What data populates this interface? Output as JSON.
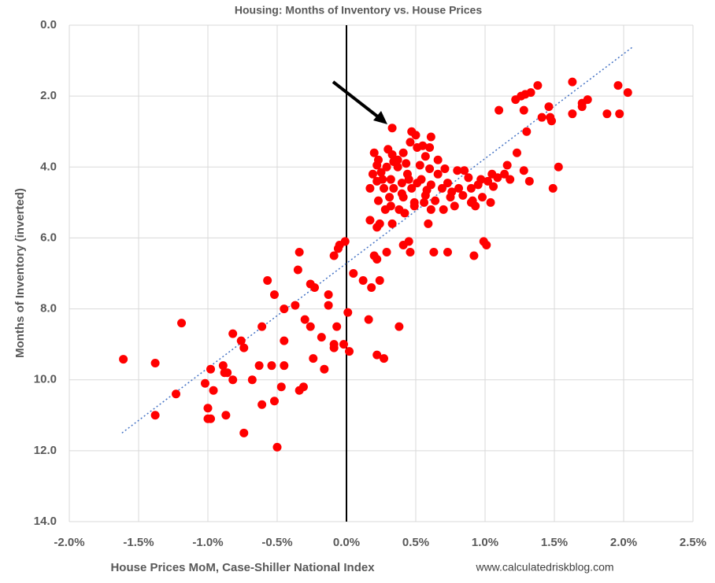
{
  "chart_data": {
    "type": "scatter",
    "title": "Housing: Months of Inventory vs. House Prices",
    "x_label": "House Prices MoM, Case-Shiller National Index",
    "y_label": "Months of Inventory (inverted)",
    "source": "www.calculatedriskblog.com",
    "color": "#ff0000",
    "y_inverted": true,
    "grid": true,
    "xlim": [
      -2.0,
      2.5
    ],
    "ylim": [
      0,
      14
    ],
    "xticks": [
      {
        "value": -2.0,
        "label": "-2.0%"
      },
      {
        "value": -1.5,
        "label": "-1.5%"
      },
      {
        "value": -1.0,
        "label": "-1.0%"
      },
      {
        "value": -0.5,
        "label": "-0.5%"
      },
      {
        "value": 0.0,
        "label": "0.0%"
      },
      {
        "value": 0.5,
        "label": "0.5%"
      },
      {
        "value": 1.0,
        "label": "1.0%"
      },
      {
        "value": 1.5,
        "label": "1.5%"
      },
      {
        "value": 2.0,
        "label": "2.0%"
      },
      {
        "value": 2.5,
        "label": "2.5%"
      }
    ],
    "yticks": [
      {
        "value": 0,
        "label": "0.0"
      },
      {
        "value": 2,
        "label": "2.0"
      },
      {
        "value": 4,
        "label": "4.0"
      },
      {
        "value": 6,
        "label": "6.0"
      },
      {
        "value": 8,
        "label": "8.0"
      },
      {
        "value": 10,
        "label": "10.0"
      },
      {
        "value": 12,
        "label": "12.0"
      },
      {
        "value": 14,
        "label": "14.0"
      }
    ],
    "trendline": {
      "color": "#4472c4",
      "x": [
        -1.62,
        2.07
      ],
      "y": [
        11.5,
        0.6
      ]
    },
    "x": [
      -1.61,
      -1.38,
      -1.38,
      -1.19,
      -1.23,
      -1.02,
      -0.98,
      -1.0,
      -1.0,
      -0.98,
      -0.96,
      -0.89,
      -0.88,
      -0.86,
      -0.87,
      -0.82,
      -0.82,
      -0.76,
      -0.74,
      -0.74,
      -0.68,
      -0.63,
      -0.61,
      -0.61,
      -0.57,
      -0.54,
      -0.52,
      -0.52,
      -0.5,
      -0.47,
      -0.45,
      -0.45,
      -0.45,
      -0.37,
      -0.35,
      -0.34,
      -0.34,
      -0.31,
      -0.3,
      -0.26,
      -0.26,
      -0.23,
      -0.24,
      -0.18,
      -0.16,
      -0.13,
      -0.13,
      -0.09,
      -0.09,
      -0.09,
      -0.07,
      -0.05,
      -0.06,
      -0.02,
      -0.01,
      0.01,
      0.02,
      0.05,
      0.12,
      0.16,
      0.18,
      0.2,
      0.22,
      0.24,
      0.22,
      0.27,
      0.29,
      0.38,
      0.33,
      1.1,
      1.22,
      1.26,
      1.28,
      1.29,
      1.33,
      1.38,
      1.3,
      1.41,
      1.46,
      1.47,
      1.48,
      1.63,
      1.63,
      1.7,
      1.7,
      1.74,
      1.96,
      2.03,
      1.88,
      1.97,
      1.23,
      1.16,
      1.28,
      1.32,
      1.53,
      1.49,
      1.02,
      1.04,
      0.99,
      1.01,
      0.92,
      0.73,
      0.63,
      0.59,
      0.45,
      0.46,
      0.41,
      0.22,
      0.17,
      0.24,
      0.33,
      0.2,
      0.23,
      0.3,
      0.33,
      0.37,
      0.41,
      0.46,
      0.47,
      0.5,
      0.55,
      0.6,
      0.61,
      0.51,
      0.19,
      0.17,
      0.22,
      0.25,
      0.29,
      0.32,
      0.34,
      0.37,
      0.4,
      0.41,
      0.44,
      0.47,
      0.49,
      0.53,
      0.54,
      0.57,
      0.6,
      0.61,
      0.64,
      0.66,
      0.69,
      0.71,
      0.73,
      0.75,
      0.78,
      0.8,
      0.81,
      0.84,
      0.88,
      0.9,
      0.91,
      0.93,
      0.95,
      0.97,
      0.28,
      0.32,
      0.38,
      0.42,
      0.49,
      0.56,
      0.61,
      0.7,
      0.31,
      0.27,
      0.23,
      0.43,
      0.34,
      0.57,
      0.66,
      0.85,
      1.05,
      1.09,
      1.14,
      1.18,
      1.06,
      0.98,
      0.9,
      0.76,
      0.51,
      0.45,
      0.58,
      0.4,
      0.26,
      0.22
    ],
    "y": [
      9.42,
      9.53,
      11.0,
      8.4,
      10.4,
      10.1,
      9.7,
      10.8,
      11.1,
      11.1,
      10.3,
      9.6,
      9.8,
      9.8,
      11.0,
      10.0,
      8.7,
      8.9,
      9.1,
      11.5,
      10.0,
      9.6,
      8.5,
      10.7,
      7.2,
      9.6,
      10.6,
      7.6,
      11.9,
      10.2,
      8.0,
      8.9,
      9.6,
      7.9,
      6.9,
      6.4,
      10.3,
      10.2,
      8.3,
      8.5,
      7.3,
      7.4,
      9.4,
      8.8,
      9.7,
      7.6,
      7.9,
      6.5,
      9.0,
      9.1,
      8.5,
      6.2,
      6.3,
      9.0,
      6.1,
      8.1,
      9.2,
      7.0,
      7.2,
      8.3,
      7.4,
      6.5,
      6.6,
      7.2,
      9.3,
      9.4,
      6.4,
      8.5,
      2.9,
      2.4,
      2.1,
      2.0,
      2.4,
      1.95,
      1.9,
      1.7,
      3.0,
      2.6,
      2.3,
      2.6,
      2.7,
      1.6,
      2.5,
      2.2,
      2.3,
      2.1,
      1.7,
      1.9,
      2.5,
      2.5,
      3.6,
      3.95,
      4.1,
      4.4,
      4.0,
      4.6,
      4.4,
      5.0,
      6.1,
      6.2,
      6.5,
      6.4,
      6.4,
      5.6,
      6.1,
      6.4,
      6.2,
      5.7,
      5.5,
      5.6,
      5.6,
      3.6,
      3.8,
      3.5,
      3.65,
      3.8,
      3.6,
      3.3,
      3.0,
      3.1,
      3.4,
      3.45,
      3.15,
      3.45,
      4.2,
      4.6,
      4.4,
      4.15,
      4.0,
      4.35,
      4.6,
      4.0,
      4.45,
      4.85,
      4.2,
      4.6,
      5.0,
      3.95,
      4.35,
      4.8,
      4.05,
      4.5,
      4.95,
      4.2,
      4.6,
      4.05,
      4.45,
      4.85,
      5.1,
      4.1,
      4.6,
      4.8,
      4.3,
      4.6,
      4.95,
      5.1,
      4.5,
      4.35,
      5.2,
      5.1,
      5.2,
      5.3,
      5.1,
      5.0,
      5.2,
      5.2,
      4.85,
      4.6,
      4.95,
      3.9,
      3.85,
      3.7,
      3.8,
      4.1,
      4.2,
      4.3,
      4.2,
      4.35,
      4.55,
      4.85,
      5.0,
      4.7,
      4.45,
      4.35,
      4.65,
      4.75,
      4.35,
      3.95
    ]
  }
}
